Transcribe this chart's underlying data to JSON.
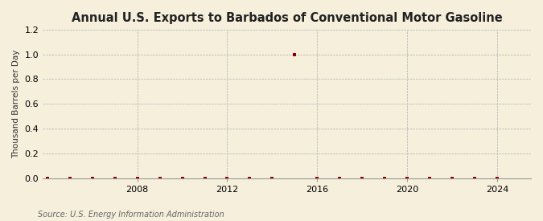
{
  "title": "Annual U.S. Exports to Barbados of Conventional Motor Gasoline",
  "ylabel": "Thousand Barrels per Day",
  "source": "Source: U.S. Energy Information Administration",
  "background_color": "#f5efdc",
  "xlim": [
    2003.8,
    2025.5
  ],
  "ylim": [
    0,
    1.2
  ],
  "yticks": [
    0.0,
    0.2,
    0.4,
    0.6,
    0.8,
    1.0,
    1.2
  ],
  "xticks": [
    2008,
    2012,
    2016,
    2020,
    2024
  ],
  "data_years": [
    2004,
    2005,
    2006,
    2007,
    2008,
    2009,
    2010,
    2011,
    2012,
    2013,
    2014,
    2015,
    2016,
    2017,
    2018,
    2019,
    2020,
    2021,
    2022,
    2023,
    2024
  ],
  "data_values": [
    0.0,
    0.0,
    0.0,
    0.0,
    0.0,
    0.0,
    0.0,
    0.0,
    0.0,
    0.0,
    0.0,
    1.0,
    0.0,
    0.0,
    0.0,
    0.0,
    0.0,
    0.0,
    0.0,
    0.0,
    0.0
  ],
  "marker_color": "#8b0000",
  "marker": "s",
  "marker_size": 2.5,
  "title_fontsize": 10.5,
  "label_fontsize": 7.5,
  "tick_fontsize": 8,
  "source_fontsize": 7
}
